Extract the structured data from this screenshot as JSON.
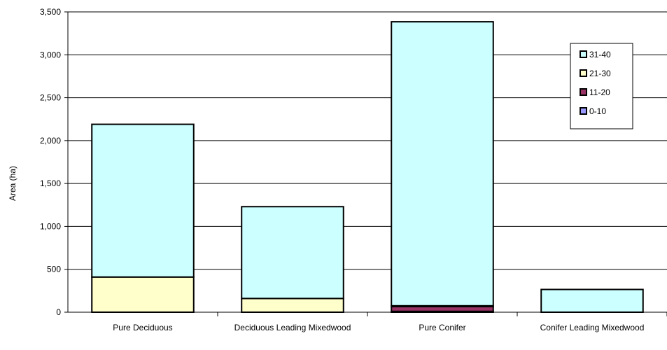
{
  "chart_data": {
    "type": "bar",
    "stacked": true,
    "categories": [
      "Pure Deciduous",
      "Deciduous Leading Mixedwood",
      "Pure Conifer",
      "Conifer Leading Mixedwood"
    ],
    "ylabel": "Area (ha)",
    "xlabel": "",
    "ylim": [
      0,
      3500
    ],
    "ytick_step": 500,
    "grid": true,
    "legend_position": "right",
    "series": [
      {
        "name": "0-10",
        "color": "#9999ff",
        "values": [
          0,
          0,
          10,
          0
        ]
      },
      {
        "name": "11-20",
        "color": "#993366",
        "values": [
          0,
          0,
          55,
          0
        ]
      },
      {
        "name": "21-30",
        "color": "#ffffcc",
        "values": [
          410,
          160,
          10,
          0
        ]
      },
      {
        "name": "31-40",
        "color": "#ccffff",
        "values": [
          1780,
          1070,
          3310,
          265
        ]
      }
    ],
    "legend_order": [
      "31-40",
      "21-30",
      "11-20",
      "0-10"
    ]
  }
}
